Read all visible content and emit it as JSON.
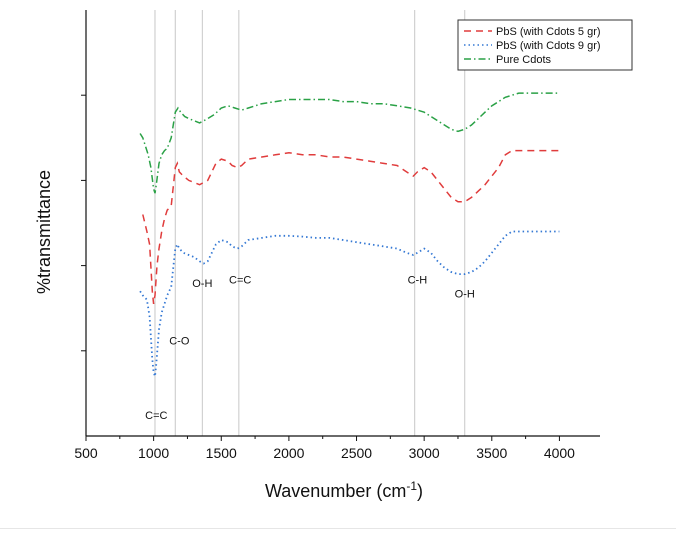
{
  "chart_data": {
    "type": "line",
    "title": "",
    "xlabel": "Wavenumber (cm",
    "xlabel_sup": "-1",
    "xlabel_end": ")",
    "ylabel": "%transmittance",
    "xlim": [
      500,
      4300
    ],
    "ylim": [
      0,
      100
    ],
    "x_ticks": [
      500,
      1000,
      1500,
      2000,
      2500,
      3000,
      3500,
      4000
    ],
    "y_ticks": [
      20,
      40,
      60,
      80
    ],
    "y_tick_labels_shown": false,
    "grid": false,
    "legend_position": "top-right",
    "reference_lines": [
      1010,
      1160,
      1360,
      1630,
      2930,
      3300
    ],
    "annotations": [
      {
        "text": "C=C",
        "x": 1020,
        "y": 4
      },
      {
        "text": "C-O",
        "x": 1190,
        "y": 21.5
      },
      {
        "text": "O-H",
        "x": 1360,
        "y": 35
      },
      {
        "text": "C=C",
        "x": 1640,
        "y": 35.8
      },
      {
        "text": "C-H",
        "x": 2950,
        "y": 35.8
      },
      {
        "text": "O-H",
        "x": 3300,
        "y": 32.5
      }
    ],
    "series": [
      {
        "name": "PbS (with Cdots 5 gr)",
        "color": "#e03c3c",
        "style": "dashed",
        "x": [
          920,
          950,
          970,
          990,
          1000,
          1010,
          1025,
          1040,
          1060,
          1080,
          1100,
          1130,
          1160,
          1175,
          1190,
          1220,
          1260,
          1300,
          1340,
          1370,
          1400,
          1430,
          1460,
          1500,
          1550,
          1580,
          1620,
          1650,
          1700,
          1800,
          1900,
          2000,
          2100,
          2200,
          2300,
          2400,
          2500,
          2600,
          2700,
          2800,
          2870,
          2920,
          2950,
          3000,
          3050,
          3100,
          3150,
          3200,
          3250,
          3300,
          3350,
          3400,
          3450,
          3500,
          3550,
          3600,
          3650,
          3700,
          3800,
          3900,
          4000
        ],
        "y": [
          52,
          48,
          45,
          34,
          31,
          33,
          40,
          44,
          48,
          51,
          53,
          54,
          63,
          64,
          62,
          61,
          60,
          59.5,
          59,
          59.5,
          60,
          62,
          64,
          65,
          64.5,
          63.5,
          63,
          63.5,
          65,
          65.5,
          66,
          66.5,
          66,
          66,
          65.5,
          65.5,
          65,
          64.5,
          64,
          63.5,
          62,
          61,
          62,
          63,
          62,
          60,
          58,
          56,
          55,
          55,
          56,
          57.5,
          59,
          61,
          63,
          66,
          67,
          67,
          67,
          67,
          67
        ]
      },
      {
        "name": "PbS (with Cdots 9 gr)",
        "color": "#3478d4",
        "style": "dotted",
        "x": [
          900,
          920,
          950,
          970,
          990,
          1000,
          1010,
          1020,
          1040,
          1060,
          1080,
          1100,
          1130,
          1160,
          1175,
          1190,
          1220,
          1260,
          1300,
          1340,
          1370,
          1400,
          1430,
          1460,
          1500,
          1550,
          1580,
          1620,
          1650,
          1700,
          1800,
          1900,
          2000,
          2100,
          2200,
          2300,
          2400,
          2500,
          2600,
          2700,
          2800,
          2870,
          2920,
          2950,
          3000,
          3050,
          3100,
          3150,
          3200,
          3250,
          3300,
          3350,
          3400,
          3450,
          3500,
          3550,
          3600,
          3650,
          3700,
          3800,
          3900,
          4000
        ],
        "y": [
          34,
          33,
          32,
          28,
          18,
          15,
          14,
          17,
          25,
          29,
          31,
          33,
          35,
          44,
          45,
          44,
          43,
          42.5,
          42,
          41,
          40.5,
          41,
          43,
          45,
          46,
          45.5,
          44.5,
          44,
          44.5,
          46,
          46.5,
          47,
          47,
          46.8,
          46.5,
          46.5,
          46,
          45.5,
          45,
          44.5,
          44,
          43,
          42.5,
          43,
          44,
          43,
          41,
          39.5,
          38.5,
          38,
          38,
          38.5,
          39.5,
          41,
          43,
          45,
          47,
          48,
          48,
          48,
          48,
          48
        ]
      },
      {
        "name": "Pure Cdots",
        "color": "#2aa146",
        "style": "dashdot",
        "x": [
          900,
          920,
          940,
          960,
          980,
          1000,
          1010,
          1020,
          1040,
          1060,
          1080,
          1100,
          1130,
          1160,
          1180,
          1200,
          1230,
          1260,
          1300,
          1340,
          1370,
          1400,
          1450,
          1500,
          1550,
          1600,
          1650,
          1700,
          1800,
          1900,
          2000,
          2100,
          2200,
          2300,
          2400,
          2500,
          2600,
          2700,
          2800,
          2900,
          2950,
          3000,
          3050,
          3100,
          3150,
          3200,
          3250,
          3300,
          3350,
          3400,
          3450,
          3500,
          3550,
          3600,
          3650,
          3700,
          3800,
          3900,
          4000
        ],
        "y": [
          71,
          70,
          68,
          66,
          63,
          58,
          57,
          59,
          64,
          66,
          67,
          67.5,
          70,
          76,
          77,
          76,
          75,
          74.5,
          74,
          73.5,
          74,
          74.5,
          75.5,
          77,
          77.5,
          77,
          76.5,
          77,
          78,
          78.5,
          79,
          79,
          79,
          79,
          78.5,
          78.5,
          78,
          78,
          77.5,
          77,
          76.5,
          76,
          75,
          74,
          73,
          72,
          71.5,
          72,
          73,
          74.5,
          76,
          77.5,
          78.5,
          79.5,
          80,
          80.5,
          80.5,
          80.5,
          80.5
        ]
      }
    ]
  }
}
